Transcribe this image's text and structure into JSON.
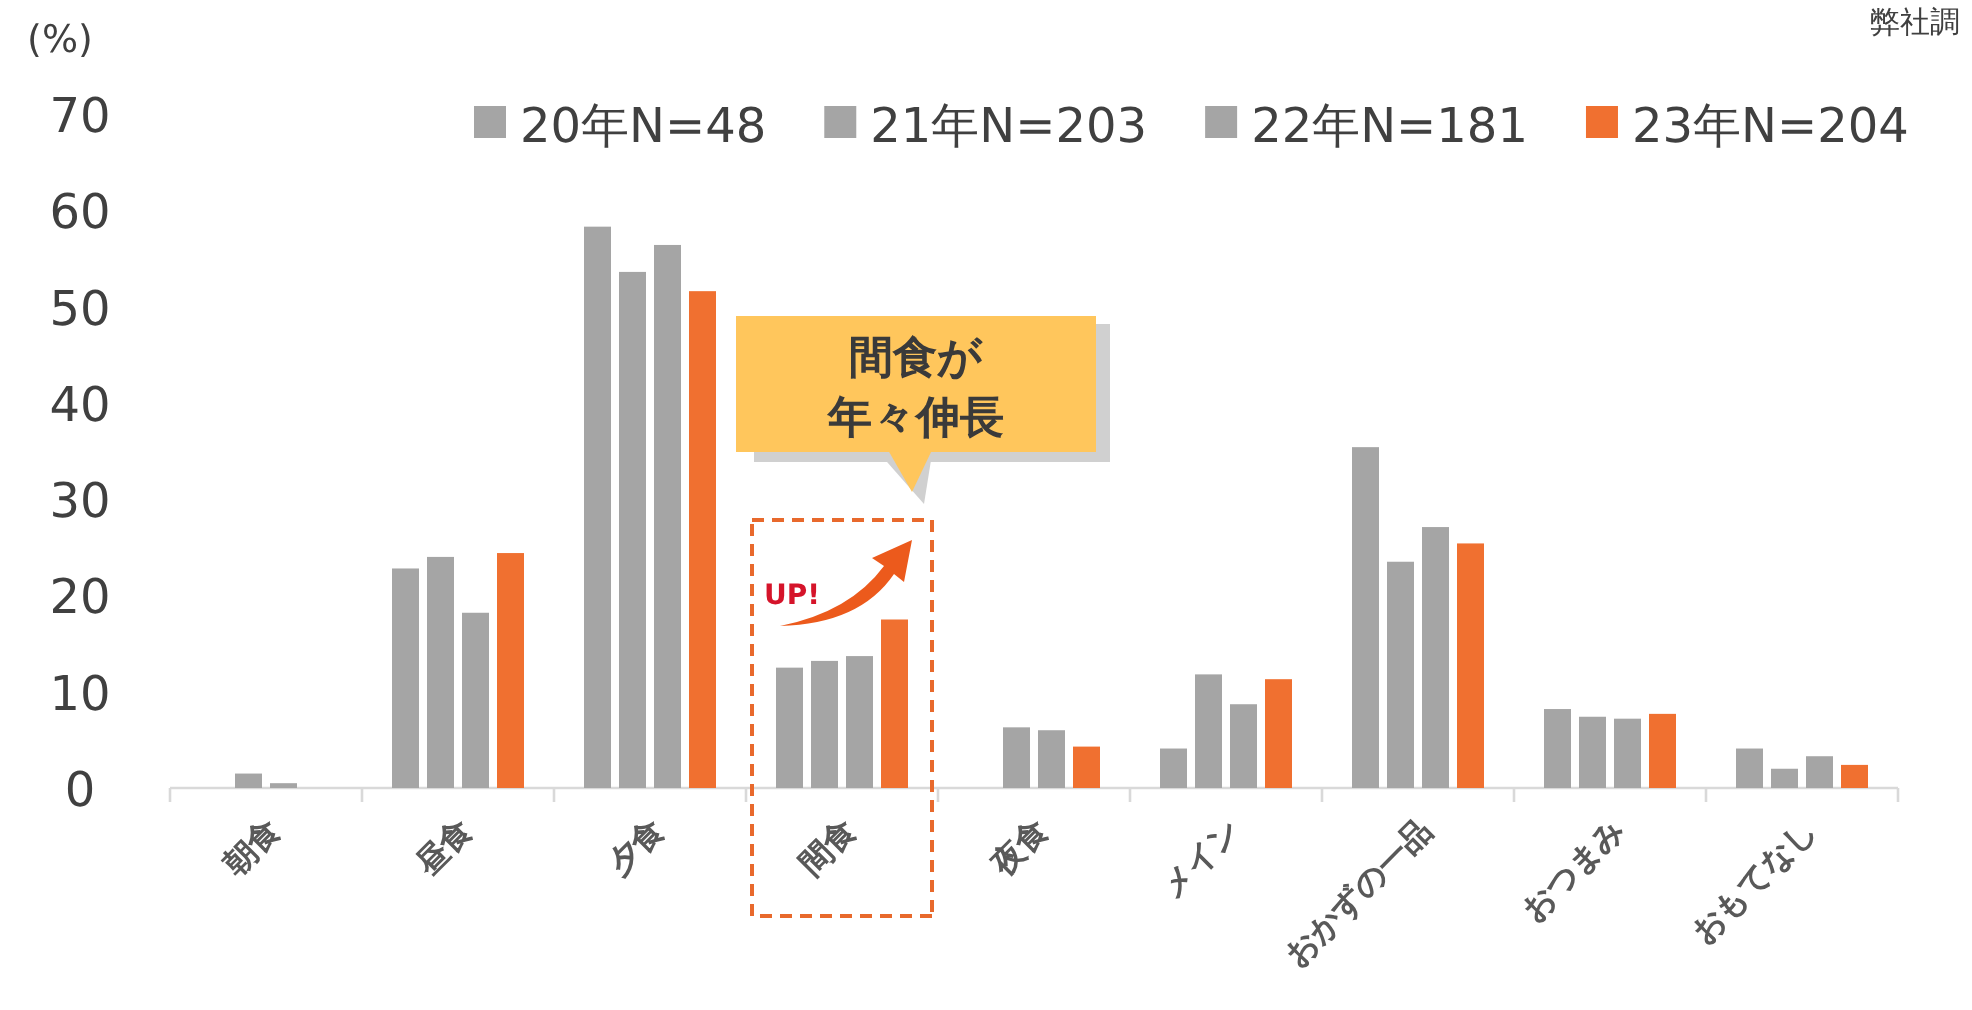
{
  "chart_data": {
    "type": "bar",
    "ylabel": "(%)",
    "categories": [
      "朝食",
      "昼食",
      "夕食",
      "間食",
      "夜食",
      "メイン",
      "おかずの一品",
      "おつまみ",
      "おもてなし"
    ],
    "series": [
      {
        "name": "20年N=48",
        "color": "#a5a5a5",
        "values": [
          null,
          22.8,
          58.3,
          12.5,
          null,
          4.1,
          35.4,
          8.2,
          4.1
        ]
      },
      {
        "name": "21年N=203",
        "color": "#a5a5a5",
        "values": [
          1.5,
          24.0,
          53.6,
          13.2,
          6.3,
          11.8,
          23.5,
          7.4,
          2.0
        ]
      },
      {
        "name": "22年N=181",
        "color": "#a5a5a5",
        "values": [
          0.5,
          18.2,
          56.4,
          13.7,
          6.0,
          8.7,
          27.1,
          7.2,
          3.3
        ]
      },
      {
        "name": "23年N=204",
        "color": "#f07030",
        "values": [
          null,
          24.4,
          51.6,
          17.5,
          4.3,
          11.3,
          25.4,
          7.7,
          2.4
        ]
      }
    ],
    "ylim": [
      0,
      70
    ],
    "yticks": [
      0,
      10,
      20,
      30,
      40,
      50,
      60,
      70
    ],
    "grid": false,
    "legend": "top right",
    "annotations": [
      "間食が",
      "年々伸長",
      "UP!",
      "弊社調"
    ]
  }
}
